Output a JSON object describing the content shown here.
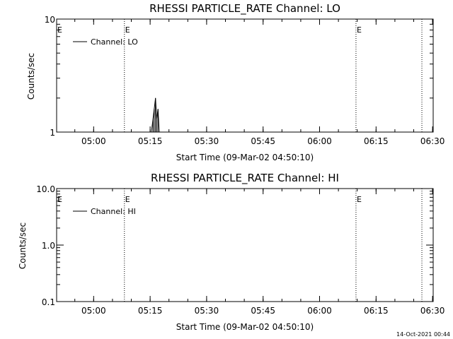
{
  "footer": {
    "timestamp": "14-Oct-2021 00:44"
  },
  "chart_data": [
    {
      "type": "line",
      "title": "RHESSI PARTICLE_RATE Channel: LO",
      "xlabel": "Start Time (09-Mar-02 04:50:10)",
      "ylabel": "Counts/sec",
      "yscale": "log",
      "ylim": [
        1,
        10
      ],
      "y_ticks": [
        1,
        10
      ],
      "y_tick_labels": [
        "1",
        "10"
      ],
      "xlim": [
        "04:50:10",
        "06:30:10"
      ],
      "x_ticks": [
        "05:00",
        "05:15",
        "05:30",
        "05:45",
        "06:00",
        "06:15",
        "06:30"
      ],
      "legend": {
        "position": "top-left",
        "entries": [
          "Channel: LO"
        ]
      },
      "event_lines": [
        {
          "time": "05:08:10",
          "label": "E",
          "labeled": true
        },
        {
          "time": "06:09:40",
          "label": "E",
          "labeled": true
        },
        {
          "time": "06:27:10",
          "label": "",
          "labeled": false
        }
      ],
      "series": [
        {
          "name": "Channel: LO",
          "x": [
            "05:15:20",
            "05:15:45",
            "05:16:05",
            "05:16:25",
            "05:16:45",
            "05:17:05",
            "05:17:25"
          ],
          "y": [
            1,
            1.3,
            1.6,
            2.0,
            1.3,
            1.6,
            1
          ]
        }
      ]
    },
    {
      "type": "line",
      "title": "RHESSI PARTICLE_RATE Channel: HI",
      "xlabel": "Start Time (09-Mar-02 04:50:10)",
      "ylabel": "Counts/sec",
      "yscale": "log",
      "ylim": [
        0.1,
        10
      ],
      "y_ticks": [
        0.1,
        1,
        10
      ],
      "y_tick_labels": [
        "0.1",
        "1.0",
        "10.0"
      ],
      "xlim": [
        "04:50:10",
        "06:30:10"
      ],
      "x_ticks": [
        "05:00",
        "05:15",
        "05:30",
        "05:45",
        "06:00",
        "06:15",
        "06:30"
      ],
      "legend": {
        "position": "top-left",
        "entries": [
          "Channel: HI"
        ]
      },
      "event_lines": [
        {
          "time": "05:08:10",
          "label": "E",
          "labeled": true
        },
        {
          "time": "06:09:40",
          "label": "E",
          "labeled": true
        },
        {
          "time": "06:27:10",
          "label": "",
          "labeled": false
        }
      ],
      "series": [
        {
          "name": "Channel: HI",
          "x": [],
          "y": []
        }
      ]
    }
  ]
}
